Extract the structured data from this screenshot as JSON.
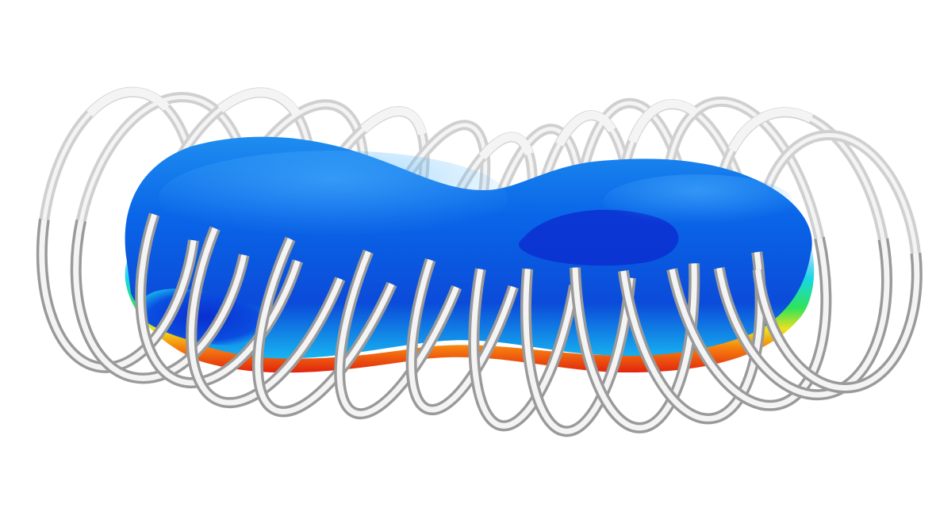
{
  "figure": {
    "description_visible_text": "",
    "background_color": "#ffffff"
  },
  "coils": {
    "count": 14,
    "colors": {
      "highlight": "#f4f4f4",
      "mid": "#d0d0d0",
      "shadow": "#9a9a9a",
      "edge": "#7d7d7d"
    }
  },
  "plasma": {
    "colors": {
      "deep_blue": "#0b3fd6",
      "blue": "#0a63e8",
      "light_blue": "#17a6f3",
      "cyan": "#19d6e6",
      "green": "#2ee35b",
      "yellow": "#f0e21a",
      "orange": "#f57d0f",
      "red": "#e1230f"
    }
  }
}
